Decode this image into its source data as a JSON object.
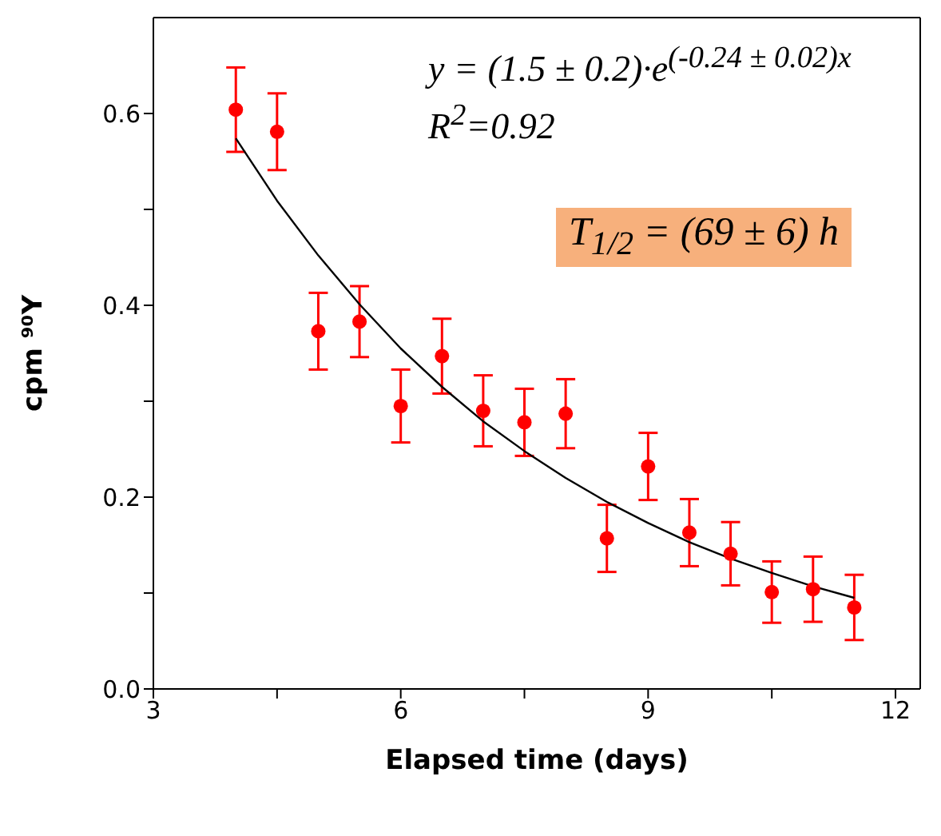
{
  "chart_data": {
    "type": "scatter",
    "xlabel": "Elapsed time (days)",
    "ylabel": "cpm ⁹⁰Y",
    "x": [
      4,
      4.5,
      5,
      5.5,
      6,
      6.5,
      7,
      7.5,
      8,
      8.5,
      9,
      9.5,
      10,
      10.5,
      11,
      11.5
    ],
    "series": [
      {
        "color": "#ff0000",
        "values": [
          0.604,
          0.581,
          0.373,
          0.383,
          0.295,
          0.347,
          0.29,
          0.278,
          0.287,
          0.157,
          0.232,
          0.163,
          0.141,
          0.101,
          0.104,
          0.085
        ],
        "errors": [
          0.044,
          0.04,
          0.04,
          0.037,
          0.038,
          0.039,
          0.037,
          0.035,
          0.036,
          0.035,
          0.035,
          0.035,
          0.033,
          0.032,
          0.034,
          0.034
        ]
      },
      {
        "type": "line",
        "marker": "none",
        "color": "#000000",
        "x": [
          4,
          4.5,
          5,
          5.5,
          6,
          6.5,
          7,
          7.5,
          8,
          8.5,
          9,
          9.5,
          10,
          10.5,
          11,
          11.5
        ],
        "values": [
          0.574,
          0.509,
          0.452,
          0.401,
          0.355,
          0.315,
          0.279,
          0.248,
          0.22,
          0.195,
          0.173,
          0.153,
          0.136,
          0.121,
          0.107,
          0.095
        ]
      }
    ],
    "xlim": [
      3,
      12.3
    ],
    "xticks": [
      3,
      {
        "value": 4.5,
        "label": null
      },
      6,
      {
        "value": 7.5,
        "label": null
      },
      9,
      {
        "value": 10.5,
        "label": null
      },
      12
    ],
    "ylim": [
      0,
      0.7
    ],
    "yticks": [
      {
        "value": 0,
        "label": "0.0"
      },
      {
        "value": 0.1,
        "label": null
      },
      0.2,
      {
        "value": 0.3,
        "label": null
      },
      0.4,
      {
        "value": 0.5,
        "label": null
      },
      0.6
    ],
    "marker": "circle",
    "grid": false,
    "annotations": [
      "y = (1.5 ± 0.2)·e$^{(-0.24 ± 0.02)x}$",
      "R$^{2}$=0.92",
      "T$_{1/2}$ = (69 ± 6) h"
    ]
  }
}
